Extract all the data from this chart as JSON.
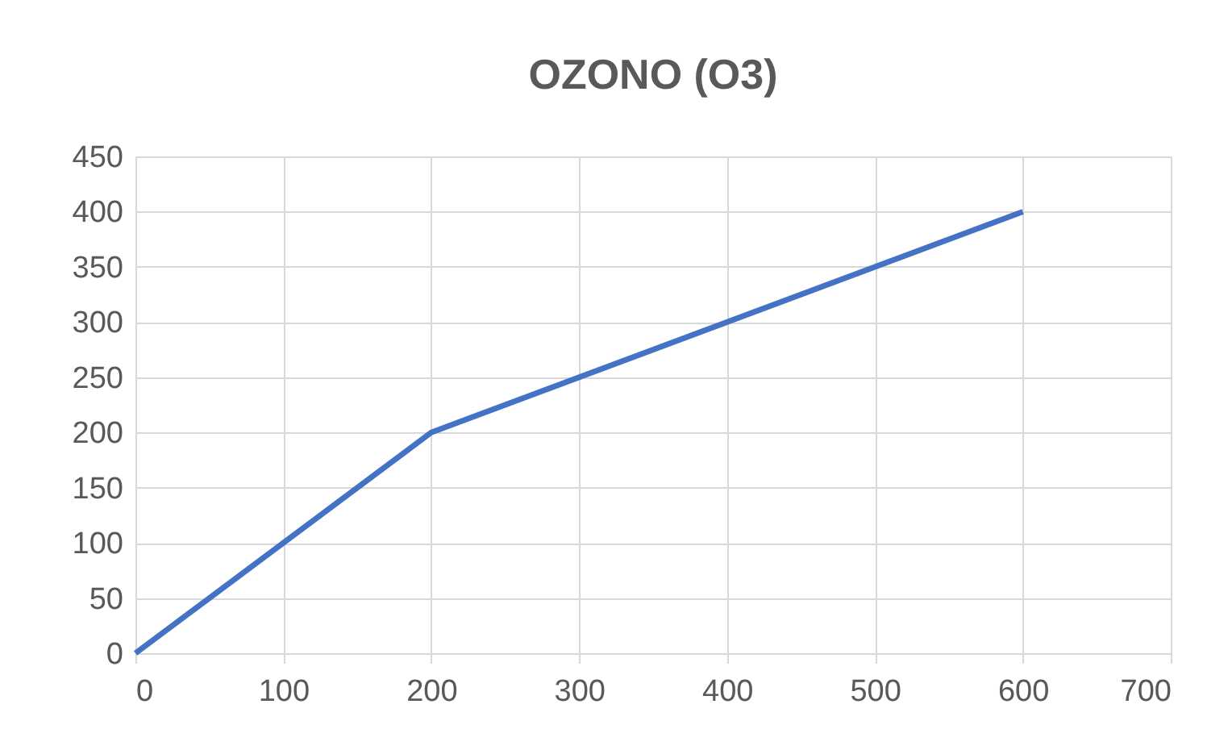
{
  "chart_data": {
    "type": "line",
    "title": "OZONO (O3)",
    "x": [
      0,
      200,
      600
    ],
    "series": [
      {
        "color": "#4472c4",
        "values": [
          0,
          200,
          400
        ]
      }
    ],
    "xlim": [
      0,
      700
    ],
    "xticks": [
      0,
      100,
      200,
      300,
      400,
      500,
      600,
      700
    ],
    "ylim": [
      0,
      450
    ],
    "yticks": [
      0,
      50,
      100,
      150,
      200,
      250,
      300,
      350,
      400,
      450
    ],
    "grid": true,
    "marker": "none",
    "line_style": "solid"
  }
}
